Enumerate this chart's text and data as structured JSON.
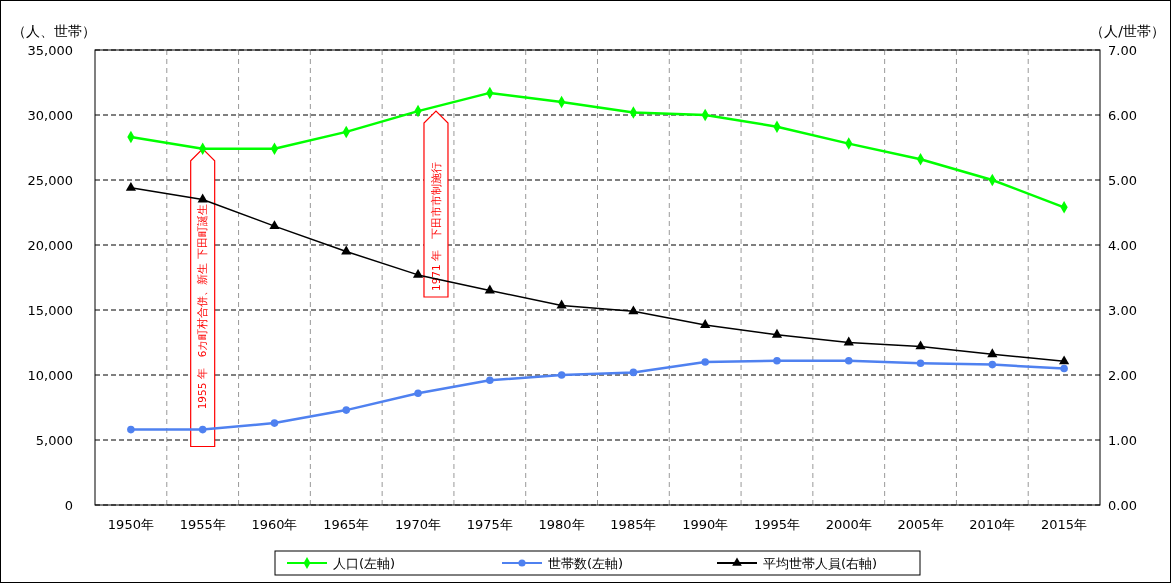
{
  "chart_data": {
    "type": "line",
    "categories": [
      "1950年",
      "1955年",
      "1960年",
      "1965年",
      "1970年",
      "1975年",
      "1980年",
      "1985年",
      "1990年",
      "1995年",
      "2000年",
      "2005年",
      "2010年",
      "2015年"
    ],
    "ylabel": "（人、世帯）",
    "y2label": "（人/世帯）",
    "ylim": [
      0,
      35000
    ],
    "yticks": [
      {
        "value": 0,
        "label": "0"
      },
      {
        "value": 5000,
        "label": "5,000"
      },
      {
        "value": 10000,
        "label": "10,000"
      },
      {
        "value": 15000,
        "label": "15,000"
      },
      {
        "value": 20000,
        "label": "20,000"
      },
      {
        "value": 25000,
        "label": "25,000"
      },
      {
        "value": 30000,
        "label": "30,000"
      },
      {
        "value": 35000,
        "label": "35,000"
      }
    ],
    "y2lim": [
      0,
      7
    ],
    "y2ticks": [
      {
        "value": 0,
        "label": "0.00"
      },
      {
        "value": 1,
        "label": "1.00"
      },
      {
        "value": 2,
        "label": "2.00"
      },
      {
        "value": 3,
        "label": "3.00"
      },
      {
        "value": 4,
        "label": "4.00"
      },
      {
        "value": 5,
        "label": "5.00"
      },
      {
        "value": 6,
        "label": "6.00"
      },
      {
        "value": 7,
        "label": "7.00"
      }
    ],
    "grid": true,
    "legend": "bottom",
    "series": [
      {
        "name": "人口(左軸)",
        "color": "#00ff00",
        "marker": "diamond",
        "values": [
          28300,
          27400,
          27400,
          28700,
          30300,
          31700,
          31000,
          30200,
          30000,
          29100,
          27800,
          26600,
          25000,
          22900
        ]
      },
      {
        "name": "世帯数(左軸)",
        "color": "#4f81f0",
        "marker": "circle",
        "values": [
          5800,
          5800,
          6300,
          7300,
          8600,
          9600,
          10000,
          10200,
          11000,
          11100,
          11100,
          10900,
          10800,
          10500
        ]
      },
      {
        "name": "平均世帯人員(右軸)",
        "color": "#000000",
        "marker": "triangle",
        "axis": "y2",
        "values": [
          4.88,
          4.7,
          4.29,
          3.9,
          3.54,
          3.3,
          3.07,
          2.98,
          2.77,
          2.62,
          2.5,
          2.44,
          2.32,
          2.21
        ]
      }
    ],
    "annotations": [
      "1955 年　6カ町村合併、新生 下田町誕生",
      "1971 年　下田市市制施行"
    ]
  }
}
